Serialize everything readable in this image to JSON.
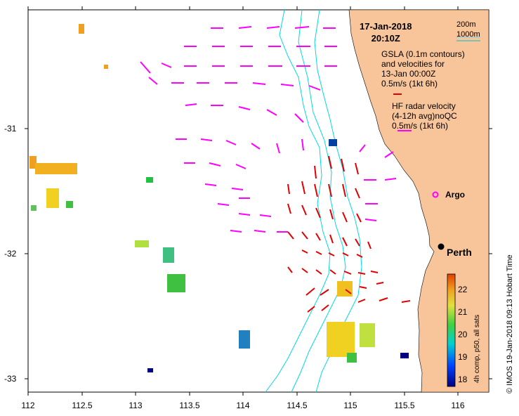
{
  "timestamp": {
    "date": "17-Jan-2018",
    "time": "20:10Z"
  },
  "depth_legend": {
    "line1": "200m",
    "line2": "1000m",
    "color_200": "#7fd0e0",
    "color_1000": "#00c0d0"
  },
  "gsla_legend": {
    "line1": "GSLA (0.1m contours)",
    "line2": "and velocities for",
    "line3": "13-Jan 00:00Z",
    "line4": "0.5m/s (1kt 6h)"
  },
  "hf_legend": {
    "line1": "HF radar velocity",
    "line2": "(4-12h avg)noQC",
    "line3": "0.5m/s (1kt 6h)"
  },
  "places": {
    "argo": "Argo",
    "perth": "Perth"
  },
  "x_axis": {
    "ticks": [
      "112",
      "112.5",
      "113",
      "113.5",
      "114",
      "114.5",
      "115",
      "115.5",
      "116"
    ]
  },
  "y_axis": {
    "ticks": [
      "-31",
      "-32",
      "-33"
    ]
  },
  "colorbar": {
    "ticks": [
      "22",
      "21",
      "20",
      "19",
      "18"
    ],
    "label": "4h comp, p50, all sats",
    "min": 17.7,
    "max": 22.7
  },
  "credit": "© IMOS 19-Jan-2018 09:13 Hobart Time",
  "colors": {
    "land": "#f8c49a",
    "hf_arrow": "#ff00ff",
    "gsla_arrow": "#e00000",
    "isobath": "#00d8e8"
  }
}
